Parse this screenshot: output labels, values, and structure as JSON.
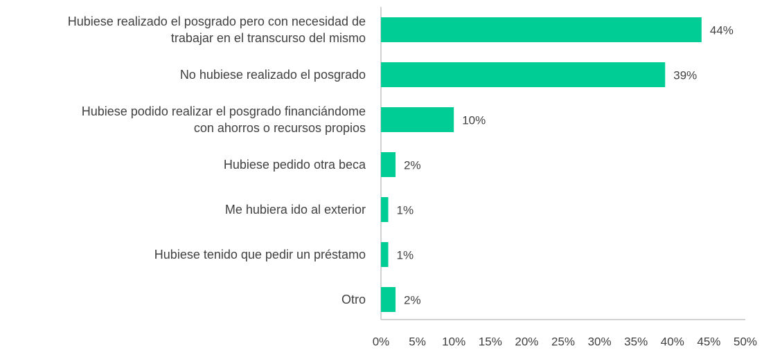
{
  "chart_data": {
    "type": "bar",
    "orientation": "horizontal",
    "categories": [
      "Hubiese realizado el posgrado pero con necesidad de\ntrabajar en el transcurso del mismo",
      "No hubiese realizado el posgrado",
      "Hubiese podido realizar el posgrado financiándome\ncon ahorros o recursos propios",
      "Hubiese pedido otra beca",
      "Me hubiera ido al exterior",
      "Hubiese tenido que pedir un préstamo",
      "Otro"
    ],
    "values": [
      44,
      39,
      10,
      2,
      1,
      1,
      2
    ],
    "value_labels": [
      "44%",
      "39%",
      "10%",
      "2%",
      "1%",
      "1%",
      "2%"
    ],
    "color": "#00cc96",
    "xlim": [
      0,
      50
    ],
    "xticks": [
      {
        "value": 0,
        "label": "0%"
      },
      {
        "value": 5,
        "label": "5%"
      },
      {
        "value": 10,
        "label": "10%"
      },
      {
        "value": 15,
        "label": "15%"
      },
      {
        "value": 20,
        "label": "20%"
      },
      {
        "value": 25,
        "label": "25%"
      },
      {
        "value": 30,
        "label": "30%"
      },
      {
        "value": 35,
        "label": "35%"
      },
      {
        "value": 40,
        "label": "40%"
      },
      {
        "value": 45,
        "label": "45%"
      },
      {
        "value": 50,
        "label": "50%"
      }
    ],
    "grid": false
  }
}
